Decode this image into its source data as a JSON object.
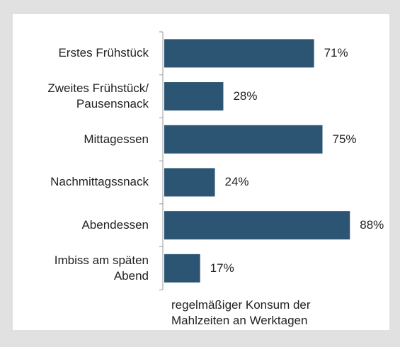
{
  "chart_data": {
    "type": "bar",
    "orientation": "horizontal",
    "categories": [
      "Erstes Frühstück",
      "Zweites Frühstück/\nPausensnack",
      "Mittagessen",
      "Nachmittagssnack",
      "Abendessen",
      "Imbiss am späten\nAbend"
    ],
    "values": [
      71,
      28,
      75,
      24,
      88,
      17
    ],
    "value_labels": [
      "71%",
      "28%",
      "75%",
      "24%",
      "88%",
      "17%"
    ],
    "color": "#2b5573",
    "xlabel": "regelmäßiger Konsum der\nMahlzeiten an Werktagen"
  }
}
